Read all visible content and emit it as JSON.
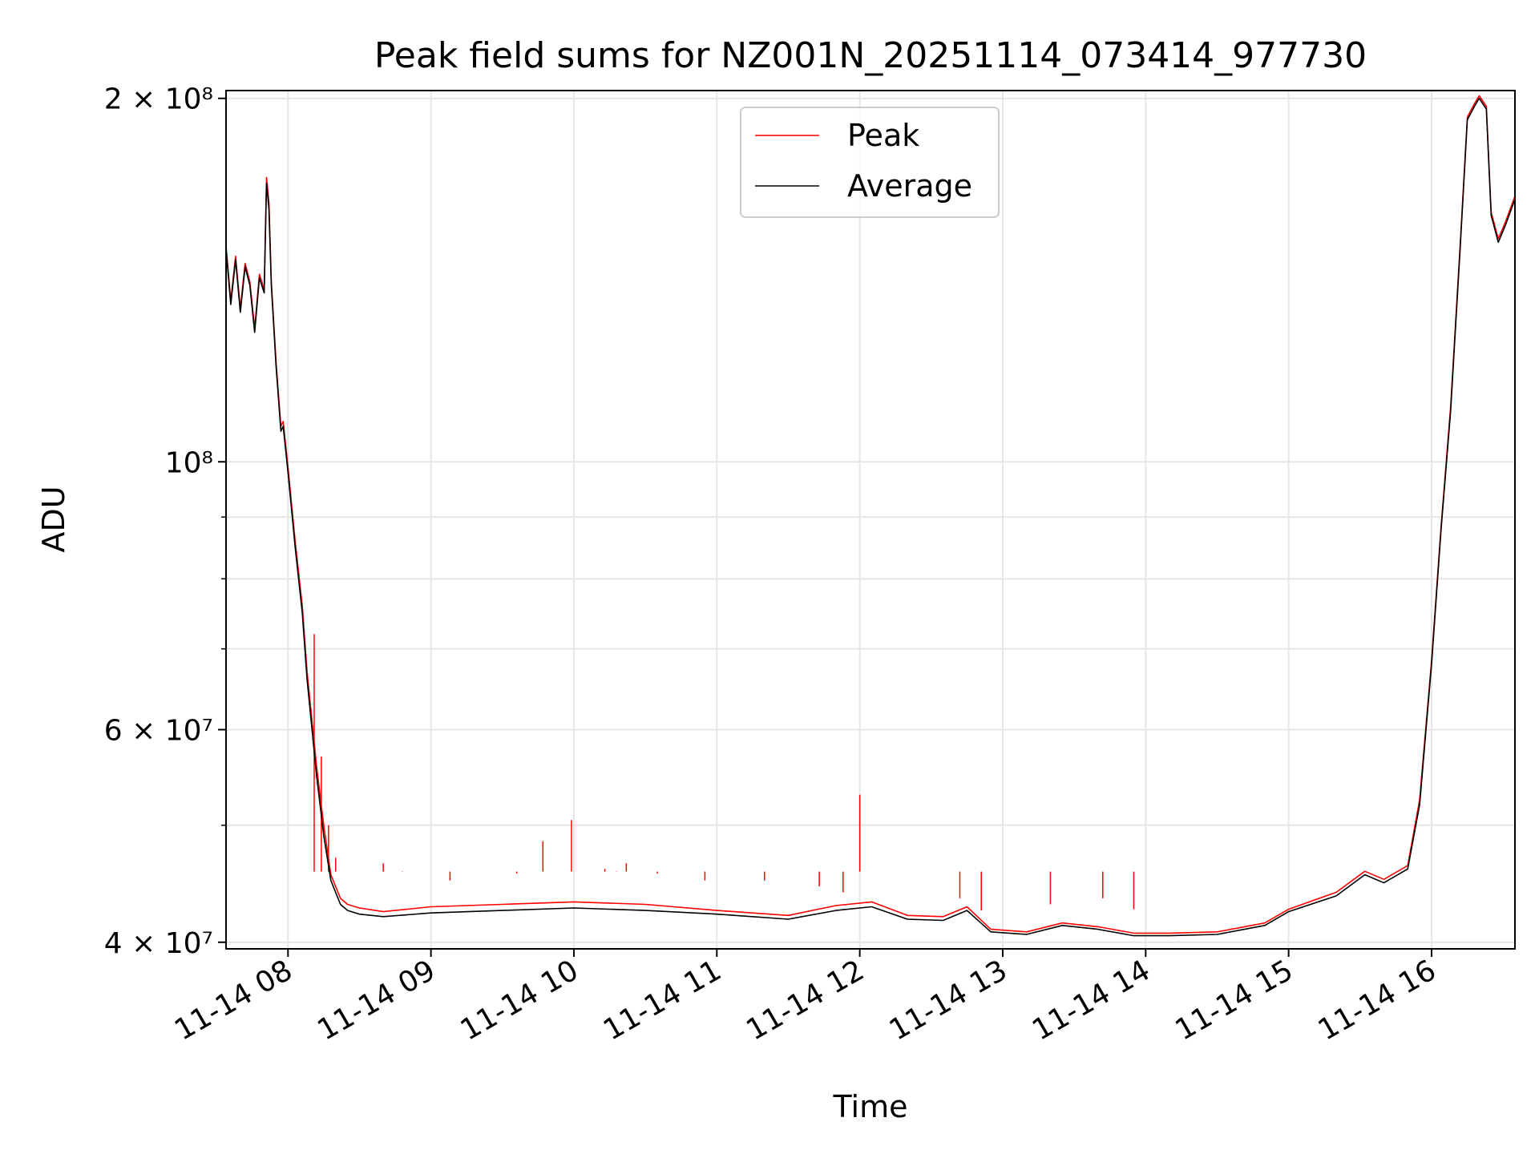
{
  "chart_data": {
    "type": "line",
    "title": "Peak field sums for NZ001N_20251114_073414_977730",
    "xlabel": "Time",
    "ylabel": "ADU",
    "yscale": "log",
    "xlim": [
      "2025-11-14 07:34",
      "2025-11-14 16:35"
    ],
    "ylim": [
      39500000,
      203000000
    ],
    "x_ticks": [
      {
        "value": "2025-11-14 08:00",
        "label": "11-14 08"
      },
      {
        "value": "2025-11-14 09:00",
        "label": "11-14 09"
      },
      {
        "value": "2025-11-14 10:00",
        "label": "11-14 10"
      },
      {
        "value": "2025-11-14 11:00",
        "label": "11-14 11"
      },
      {
        "value": "2025-11-14 12:00",
        "label": "11-14 12"
      },
      {
        "value": "2025-11-14 13:00",
        "label": "11-14 13"
      },
      {
        "value": "2025-11-14 14:00",
        "label": "11-14 14"
      },
      {
        "value": "2025-11-14 15:00",
        "label": "11-14 15"
      },
      {
        "value": "2025-11-14 16:00",
        "label": "11-14 16"
      }
    ],
    "y_ticks": [
      {
        "value": 40000000,
        "label": "4 × 10⁷"
      },
      {
        "value": 60000000,
        "label": "6 × 10⁷"
      },
      {
        "value": 100000000,
        "label": "10⁸"
      },
      {
        "value": 200000000,
        "label": "2 × 10⁸"
      }
    ],
    "y_minor_ticks": [
      50000000,
      70000000,
      80000000,
      90000000
    ],
    "grid": true,
    "legend": "upper-center",
    "series": [
      {
        "name": "Average",
        "color": "#000000",
        "x": [
          "2025-11-14 07:34",
          "2025-11-14 07:36",
          "2025-11-14 07:38",
          "2025-11-14 07:40",
          "2025-11-14 07:42",
          "2025-11-14 07:44",
          "2025-11-14 07:46",
          "2025-11-14 07:48",
          "2025-11-14 07:50",
          "2025-11-14 07:51",
          "2025-11-14 07:52",
          "2025-11-14 07:53",
          "2025-11-14 07:55",
          "2025-11-14 07:57",
          "2025-11-14 07:58",
          "2025-11-14 08:00",
          "2025-11-14 08:03",
          "2025-11-14 08:06",
          "2025-11-14 08:08",
          "2025-11-14 08:12",
          "2025-11-14 08:15",
          "2025-11-14 08:18",
          "2025-11-14 08:22",
          "2025-11-14 08:25",
          "2025-11-14 08:30",
          "2025-11-14 08:40",
          "2025-11-14 09:00",
          "2025-11-14 09:30",
          "2025-11-14 10:00",
          "2025-11-14 10:30",
          "2025-11-14 11:00",
          "2025-11-14 11:30",
          "2025-11-14 11:50",
          "2025-11-14 12:05",
          "2025-11-14 12:20",
          "2025-11-14 12:35",
          "2025-11-14 12:45",
          "2025-11-14 12:55",
          "2025-11-14 13:10",
          "2025-11-14 13:25",
          "2025-11-14 13:40",
          "2025-11-14 13:55",
          "2025-11-14 14:10",
          "2025-11-14 14:30",
          "2025-11-14 14:50",
          "2025-11-14 15:00",
          "2025-11-14 15:20",
          "2025-11-14 15:32",
          "2025-11-14 15:40",
          "2025-11-14 15:50",
          "2025-11-14 15:55",
          "2025-11-14 16:00",
          "2025-11-14 16:04",
          "2025-11-14 16:08",
          "2025-11-14 16:12",
          "2025-11-14 16:15",
          "2025-11-14 16:18",
          "2025-11-14 16:20",
          "2025-11-14 16:23",
          "2025-11-14 16:25",
          "2025-11-14 16:28",
          "2025-11-14 16:31",
          "2025-11-14 16:35"
        ],
        "values": [
          150000000,
          135000000,
          147000000,
          133000000,
          145000000,
          140000000,
          128000000,
          142000000,
          138000000,
          170000000,
          162000000,
          140000000,
          120000000,
          106000000,
          107000000,
          98000000,
          85000000,
          75000000,
          66000000,
          55000000,
          49000000,
          45000000,
          43000000,
          42500000,
          42200000,
          42000000,
          42300000,
          42500000,
          42700000,
          42500000,
          42200000,
          41800000,
          42500000,
          42800000,
          41800000,
          41700000,
          42500000,
          40800000,
          40600000,
          41300000,
          41000000,
          40500000,
          40500000,
          40600000,
          41300000,
          42400000,
          43700000,
          45500000,
          44800000,
          46000000,
          52000000,
          68000000,
          88000000,
          110000000,
          150000000,
          192000000,
          197000000,
          200000000,
          196000000,
          160000000,
          152000000,
          157000000,
          165000000
        ]
      },
      {
        "name": "Peak",
        "color": "#ff0000",
        "x": [
          "2025-11-14 07:34",
          "2025-11-14 07:36",
          "2025-11-14 07:38",
          "2025-11-14 07:40",
          "2025-11-14 07:42",
          "2025-11-14 07:44",
          "2025-11-14 07:46",
          "2025-11-14 07:48",
          "2025-11-14 07:50",
          "2025-11-14 07:51",
          "2025-11-14 07:52",
          "2025-11-14 07:53",
          "2025-11-14 07:55",
          "2025-11-14 07:57",
          "2025-11-14 07:58",
          "2025-11-14 08:00",
          "2025-11-14 08:03",
          "2025-11-14 08:06",
          "2025-11-14 08:08",
          "2025-11-14 08:12",
          "2025-11-14 08:15",
          "2025-11-14 08:18",
          "2025-11-14 08:22",
          "2025-11-14 08:25",
          "2025-11-14 08:30",
          "2025-11-14 08:40",
          "2025-11-14 09:00",
          "2025-11-14 09:30",
          "2025-11-14 10:00",
          "2025-11-14 10:30",
          "2025-11-14 11:00",
          "2025-11-14 11:30",
          "2025-11-14 11:50",
          "2025-11-14 12:05",
          "2025-11-14 12:20",
          "2025-11-14 12:35",
          "2025-11-14 12:45",
          "2025-11-14 12:55",
          "2025-11-14 13:10",
          "2025-11-14 13:25",
          "2025-11-14 13:40",
          "2025-11-14 13:55",
          "2025-11-14 14:10",
          "2025-11-14 14:30",
          "2025-11-14 14:50",
          "2025-11-14 15:00",
          "2025-11-14 15:20",
          "2025-11-14 15:32",
          "2025-11-14 15:40",
          "2025-11-14 15:50",
          "2025-11-14 15:55",
          "2025-11-14 16:00",
          "2025-11-14 16:04",
          "2025-11-14 16:08",
          "2025-11-14 16:12",
          "2025-11-14 16:15",
          "2025-11-14 16:18",
          "2025-11-14 16:20",
          "2025-11-14 16:23",
          "2025-11-14 16:25",
          "2025-11-14 16:28",
          "2025-11-14 16:31",
          "2025-11-14 16:35"
        ],
        "values": [
          151000000,
          136000000,
          148000000,
          134000000,
          146000000,
          141000000,
          129000000,
          143000000,
          139000000,
          172000000,
          164000000,
          141000000,
          121000000,
          107000000,
          108000000,
          99000000,
          86000000,
          76000000,
          67000000,
          56000000,
          50000000,
          45500000,
          43500000,
          43000000,
          42700000,
          42400000,
          42800000,
          43000000,
          43200000,
          43000000,
          42500000,
          42100000,
          42900000,
          43200000,
          42100000,
          42000000,
          42800000,
          41000000,
          40800000,
          41500000,
          41200000,
          40700000,
          40700000,
          40800000,
          41500000,
          42600000,
          44000000,
          45800000,
          45100000,
          46300000,
          52500000,
          68500000,
          88500000,
          111000000,
          151000000,
          193000000,
          198000000,
          201000000,
          197000000,
          161000000,
          153000000,
          158000000,
          166000000
        ]
      },
      {
        "name": "",
        "color": "#ff0000",
        "type": "spikes",
        "x": [
          "2025-11-14 08:11",
          "2025-11-14 08:14",
          "2025-11-14 08:17",
          "2025-11-14 08:20",
          "2025-11-14 08:40",
          "2025-11-14 08:48",
          "2025-11-14 09:08",
          "2025-11-14 09:36",
          "2025-11-14 09:47",
          "2025-11-14 09:59",
          "2025-11-14 10:13",
          "2025-11-14 10:18",
          "2025-11-14 10:22",
          "2025-11-14 10:35",
          "2025-11-14 10:55",
          "2025-11-14 11:20",
          "2025-11-14 11:43",
          "2025-11-14 11:53",
          "2025-11-14 12:00",
          "2025-11-14 12:42",
          "2025-11-14 12:51",
          "2025-11-14 13:20",
          "2025-11-14 13:42",
          "2025-11-14 13:55"
        ],
        "values": [
          72000000,
          57000000,
          50000000,
          47000000,
          46500000,
          45800000,
          45000000,
          45600000,
          48500000,
          50500000,
          46000000,
          45800000,
          46500000,
          45600000,
          45000000,
          45000000,
          44500000,
          44000000,
          53000000,
          43500000,
          42500000,
          43000000,
          43500000,
          42600000
        ]
      }
    ]
  }
}
